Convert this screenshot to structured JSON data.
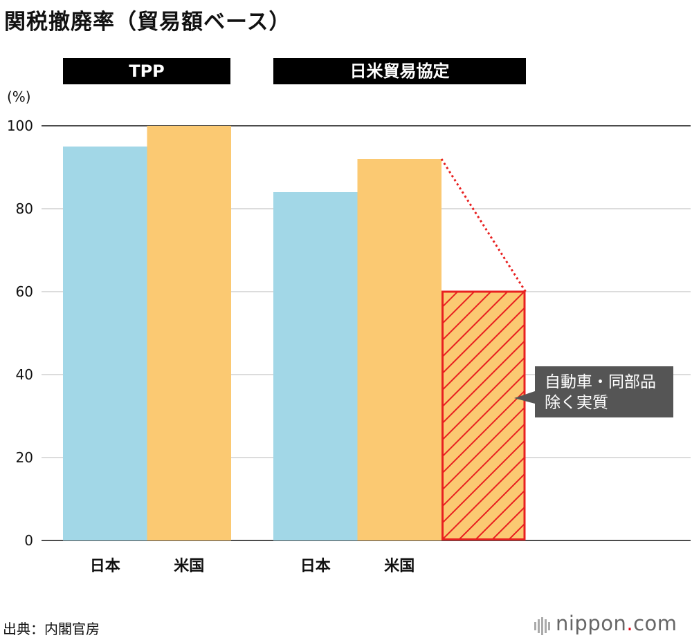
{
  "title": "関税撤廃率（貿易額ベース）",
  "unit_label": "(%)",
  "source": "出典：内閣官房",
  "brand": {
    "name": "nippon",
    "dot": ".",
    "suffix": "com"
  },
  "colors": {
    "japan": "#a2d7e7",
    "usa": "#fbc972",
    "highlight": "#e82020",
    "note_bg": "#555555"
  },
  "chart_data": {
    "type": "bar",
    "ylim": [
      0,
      100
    ],
    "yticks": [
      0,
      20,
      40,
      60,
      80,
      100
    ],
    "grid": true,
    "groups": [
      {
        "label": "TPP",
        "bars": [
          {
            "category": "日本",
            "value": 95,
            "series": "japan"
          },
          {
            "category": "米国",
            "value": 100,
            "series": "usa"
          }
        ]
      },
      {
        "label": "日米貿易協定",
        "bars": [
          {
            "category": "日本",
            "value": 84,
            "series": "japan"
          },
          {
            "category": "米国",
            "value": 92,
            "series": "usa"
          },
          {
            "category": "",
            "value": 60,
            "series": "usa",
            "hatched": true
          }
        ]
      }
    ],
    "annotation": {
      "lines": [
        "自動車・同部品",
        "除く実質"
      ]
    }
  }
}
